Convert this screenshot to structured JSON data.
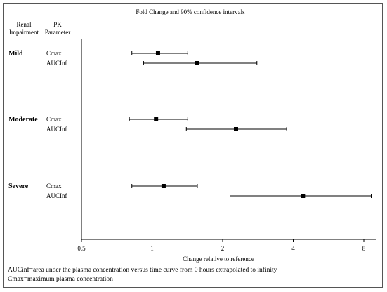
{
  "chart_data": {
    "type": "forest",
    "title": "Fold Change and 90% confidence intervals",
    "xlabel": "Change relative to reference",
    "x_scale": "log2",
    "xlim": [
      0.5,
      10
    ],
    "x_ticks": [
      "0.5",
      "1",
      "2",
      "4",
      "8"
    ],
    "reference_line": 1,
    "column_headers": {
      "group": [
        "Renal",
        "Impairment"
      ],
      "param": [
        "PK",
        "Parameter"
      ]
    },
    "groups": [
      {
        "name": "Mild",
        "rows": [
          {
            "param": "Cmax",
            "estimate": 1.06,
            "lower": 0.82,
            "upper": 1.42
          },
          {
            "param": "AUCInf",
            "estimate": 1.55,
            "lower": 0.92,
            "upper": 2.8
          }
        ]
      },
      {
        "name": "Moderate",
        "rows": [
          {
            "param": "Cmax",
            "estimate": 1.04,
            "lower": 0.8,
            "upper": 1.42
          },
          {
            "param": "AUCInf",
            "estimate": 2.28,
            "lower": 1.4,
            "upper": 3.75
          }
        ]
      },
      {
        "name": "Severe",
        "rows": [
          {
            "param": "Cmax",
            "estimate": 1.12,
            "lower": 0.82,
            "upper": 1.56
          },
          {
            "param": "AUCInf",
            "estimate": 4.4,
            "lower": 2.15,
            "upper": 8.6
          }
        ]
      }
    ]
  },
  "footnotes": [
    "AUCinf=area under the plasma concentration versus time curve from 0 hours extrapolated to infinity",
    "Cmax=maximum plasma concentration"
  ]
}
